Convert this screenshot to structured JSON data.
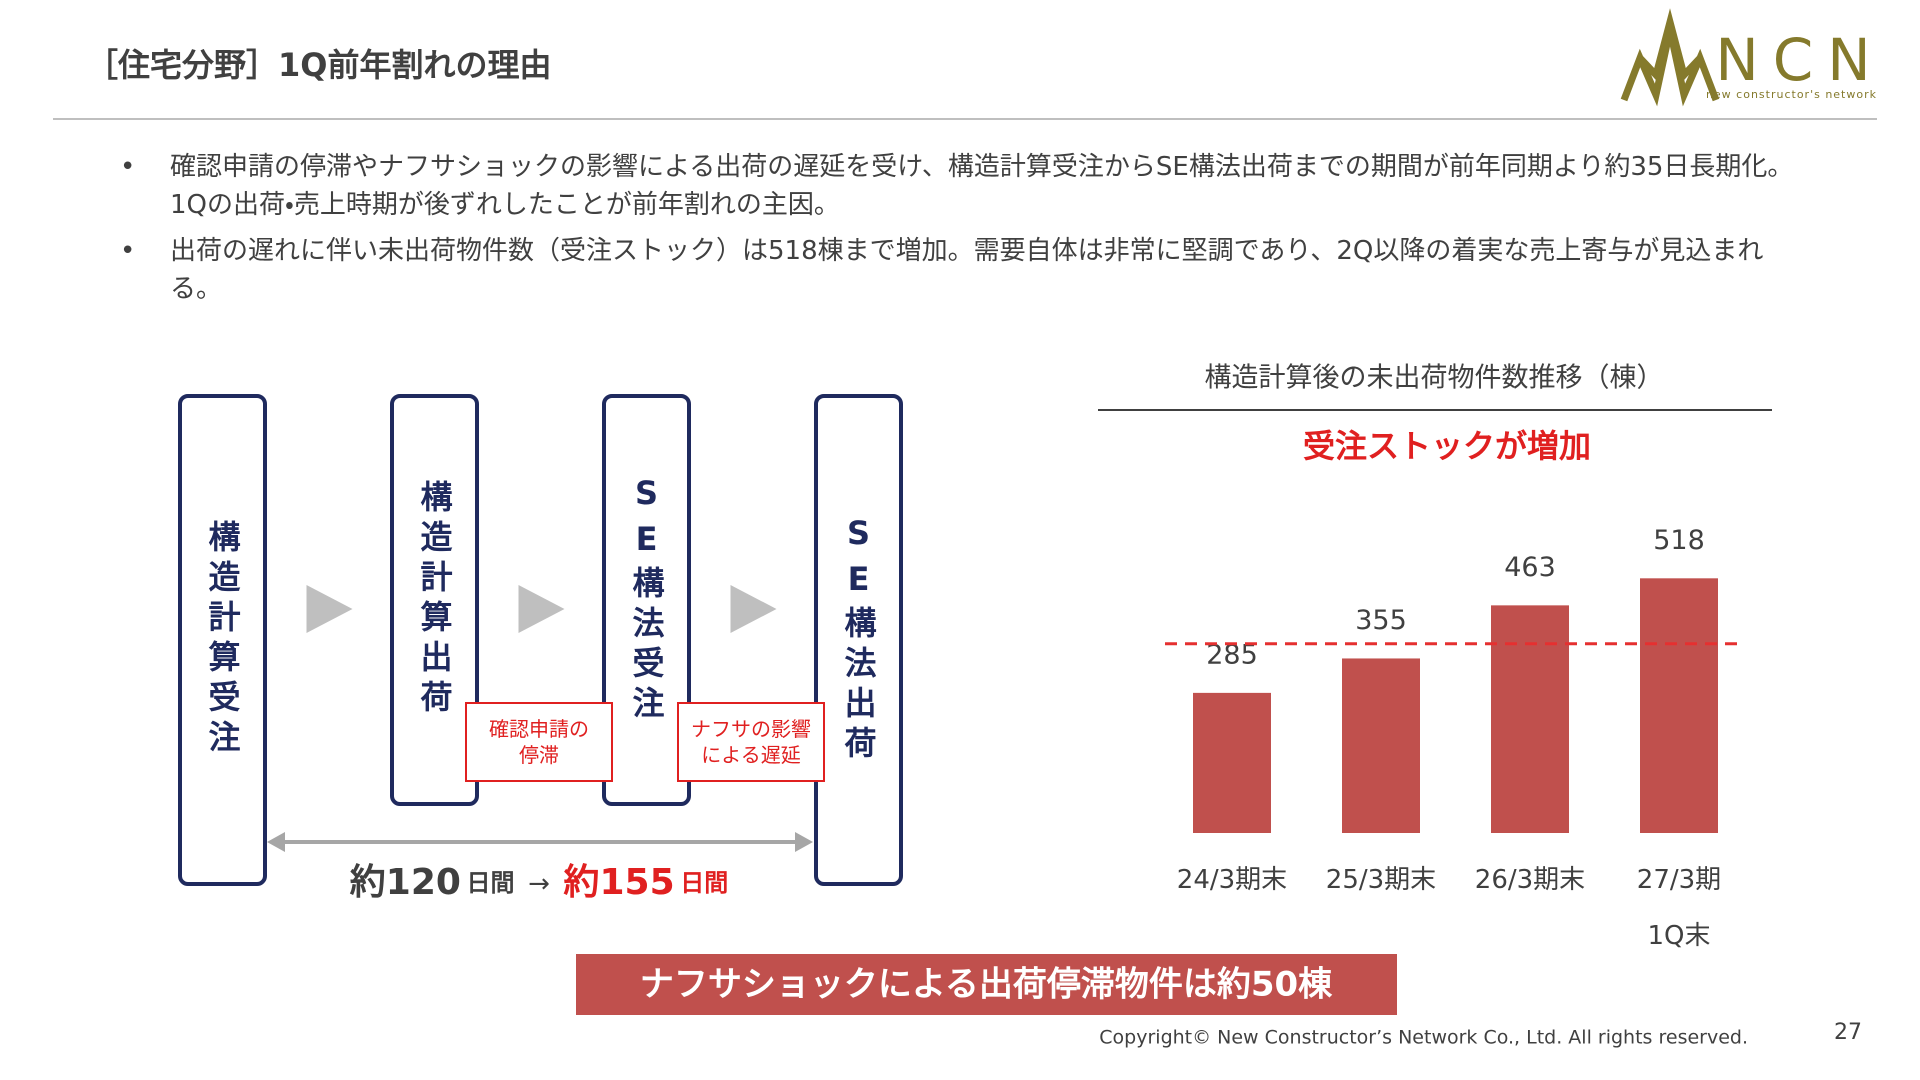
{
  "header": {
    "title": "［住宅分野］1Q前年割れの理由",
    "logo": {
      "name": "NCN",
      "tagline": "new constructor's network"
    }
  },
  "bullets": [
    "確認申請の停滞やナフサショックの影響による出荷の遅延を受け、構造計算受注からSE構法出荷までの期間が前年同期より約35日長期化。1Qの出荷・売上時期が後ずれしたことが前年割れの主因。",
    "出荷の遅れに伴い未出荷物件数（受注ストック）は518棟まで増加。需要自体は非常に堅調であり、2Q以降の着実な売上寄与が見込まれる。"
  ],
  "flow": {
    "steps": [
      "構造計算受注",
      "構造計算出荷",
      "SE構法受注",
      "SE構法出荷"
    ],
    "causes": [
      "確認申請の\n停滞",
      "ナフサの影響\nによる遅延"
    ],
    "duration": {
      "before": "約120",
      "before_unit": "日間",
      "arrow": "→",
      "after": "約155",
      "after_unit": "日間"
    }
  },
  "banner": "ナフサショックによる出荷停滞物件は約50棟",
  "chart_data": {
    "type": "bar",
    "title": "構造計算後の未出荷物件数推移（棟）",
    "subtitle": "受注ストックが増加",
    "categories": [
      "24/3期末",
      "25/3期末",
      "26/3期末",
      "27/3期\n1Q末"
    ],
    "values": [
      285,
      355,
      463,
      518
    ],
    "color": "#c0504d",
    "ylim": [
      0,
      600
    ],
    "reference_line": {
      "value": 385,
      "color": "#e53030",
      "dashed": true
    }
  },
  "footer": {
    "copyright": "Copyright© New Constructor’s Network Co., Ltd. All rights reserved.",
    "page": "27"
  }
}
